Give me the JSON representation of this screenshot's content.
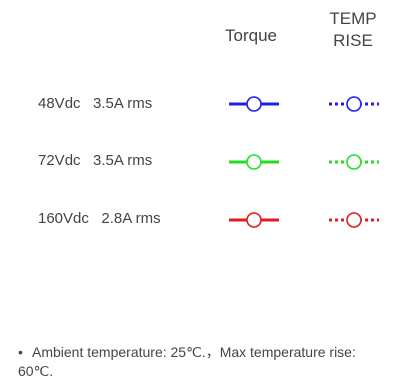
{
  "chart_data": {
    "type": "legend",
    "columns": [
      "Torque",
      [
        "TEMP",
        "RISE"
      ]
    ],
    "series": [
      {
        "name": "48Vdc   3.5A rms",
        "color": "#1f1fe0"
      },
      {
        "name": "72Vdc   3.5A rms",
        "color": "#22dd22"
      },
      {
        "name": "160Vdc   2.8A rms",
        "color": "#e01e1e"
      }
    ],
    "styles": {
      "torque": "solid",
      "temp_rise": "dotted"
    },
    "marker": "open-circle"
  },
  "note": {
    "bullet": "•",
    "text": "Ambient temperature: 25℃.，Max temperature rise: 60℃."
  }
}
